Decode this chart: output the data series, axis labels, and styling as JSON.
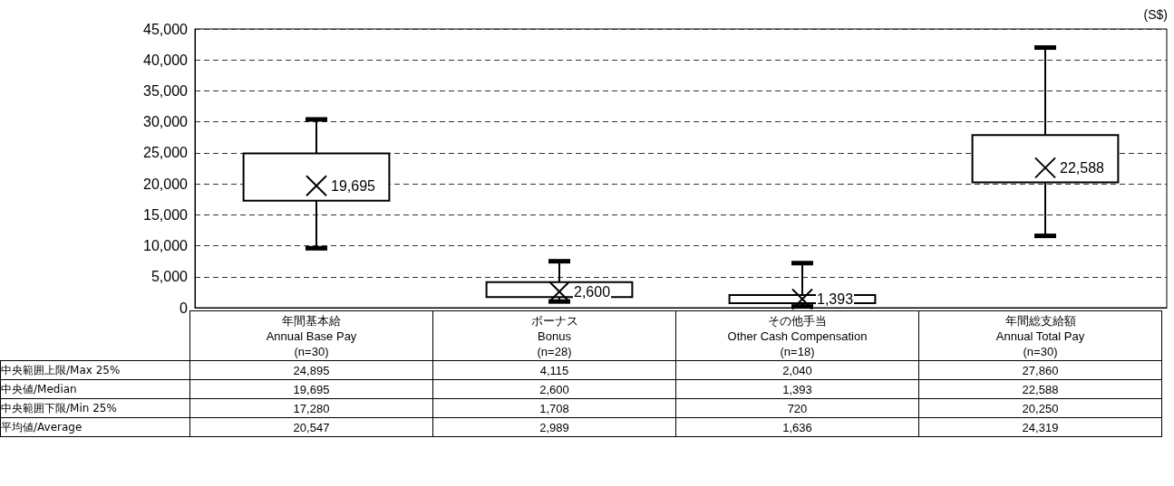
{
  "chart_data": {
    "type": "box",
    "ylabel": "(S$)",
    "categories": [
      "年間基本給\nAnnual Base Pay\n(n=30)",
      "ボーナス\nBonus\n(n=28)",
      "その他手当\nOther Cash Compensation\n(n=18)",
      "年間総支給額\nAnnual Total Pay\n(n=30)"
    ],
    "boxes": [
      {
        "low": 9600,
        "q1": 17280,
        "median": 19695,
        "q3": 24895,
        "high": 30400
      },
      {
        "low": 1000,
        "q1": 1708,
        "median": 2600,
        "q3": 4115,
        "high": 7500
      },
      {
        "low": 200,
        "q1": 720,
        "median": 1393,
        "q3": 2040,
        "high": 7200
      },
      {
        "low": 11600,
        "q1": 20250,
        "median": 22588,
        "q3": 27860,
        "high": 42000
      }
    ],
    "annotations": [
      "19,695",
      "2,600",
      "1,393",
      "22,588",
      "中央範囲上限/Max 25%",
      "24,895",
      "4,115",
      "2,040",
      "27,860",
      "中央値/Median",
      "19,695",
      "2,600",
      "1,393",
      "22,588",
      "中央範囲下限/Min 25%",
      "17,280",
      "1,708",
      "720",
      "20,250",
      "平均値/Average",
      "20,547",
      "2,989",
      "1,636",
      "24,319"
    ],
    "ylim": [
      0,
      45000
    ],
    "yticks": [
      {
        "value": 0,
        "label": "0"
      },
      {
        "value": 5000,
        "label": "5,000"
      },
      {
        "value": 10000,
        "label": "10,000"
      },
      {
        "value": 15000,
        "label": "15,000"
      },
      {
        "value": 20000,
        "label": "20,000"
      },
      {
        "value": 25000,
        "label": "25,000"
      },
      {
        "value": 30000,
        "label": "30,000"
      },
      {
        "value": 35000,
        "label": "35,000"
      },
      {
        "value": 40000,
        "label": "40,000"
      },
      {
        "value": 45000,
        "label": "45,000"
      }
    ],
    "grid": "y",
    "marker": "cross",
    "color": "#000000"
  }
}
